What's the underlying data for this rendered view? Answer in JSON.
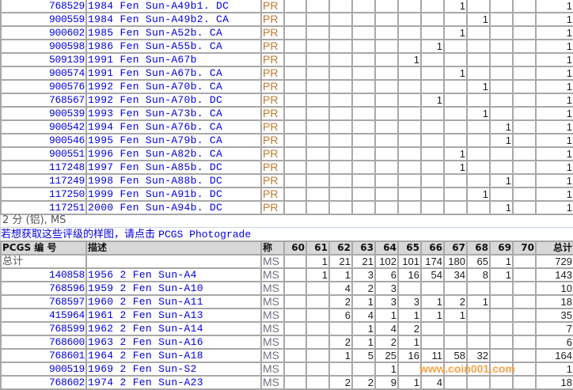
{
  "grade_columns": [
    "60",
    "61",
    "62",
    "63",
    "64",
    "65",
    "66",
    "67",
    "68",
    "69",
    "70"
  ],
  "pr_section": {
    "rows": [
      {
        "id": "768529",
        "desc": "1984 Fen Sun-A49b1. DC",
        "g": "PR",
        "counts": {
          "67": "1"
        },
        "total": "1"
      },
      {
        "id": "900559",
        "desc": "1984 Fen Sun-A49b2. CA",
        "g": "PR",
        "counts": {
          "68": "1"
        },
        "total": "1"
      },
      {
        "id": "900602",
        "desc": "1985 Fen Sun-A52b. CA",
        "g": "PR",
        "counts": {
          "67": "1"
        },
        "total": "1"
      },
      {
        "id": "900598",
        "desc": "1986 Fen Sun-A55b. CA",
        "g": "PR",
        "counts": {
          "66": "1"
        },
        "total": "1"
      },
      {
        "id": "509139",
        "desc": "1991 Fen Sun-A67b",
        "g": "PR",
        "counts": {
          "65": "1"
        },
        "total": "1"
      },
      {
        "id": "900574",
        "desc": "1991 Fen Sun-A67b. CA",
        "g": "PR",
        "counts": {
          "67": "1"
        },
        "total": "1"
      },
      {
        "id": "900576",
        "desc": "1992 Fen Sun-A70b. CA",
        "g": "PR",
        "counts": {
          "68": "1"
        },
        "total": "1"
      },
      {
        "id": "768567",
        "desc": "1992 Fen Sun-A70b. DC",
        "g": "PR",
        "counts": {
          "66": "1"
        },
        "total": "1"
      },
      {
        "id": "900539",
        "desc": "1993 Fen Sun-A73b. CA",
        "g": "PR",
        "counts": {
          "68": "1"
        },
        "total": "1"
      },
      {
        "id": "900542",
        "desc": "1994 Fen Sun-A76b. CA",
        "g": "PR",
        "counts": {
          "69": "1"
        },
        "total": "1"
      },
      {
        "id": "900546",
        "desc": "1995 Fen Sun-A79b. CA",
        "g": "PR",
        "counts": {
          "69": "1"
        },
        "total": "1"
      },
      {
        "id": "900551",
        "desc": "1996 Fen Sun-A82b. CA",
        "g": "PR",
        "counts": {
          "67": "1"
        },
        "total": "1"
      },
      {
        "id": "117248",
        "desc": "1997 Fen Sun-A85b. DC",
        "g": "PR",
        "counts": {
          "67": "1"
        },
        "total": "1"
      },
      {
        "id": "117249",
        "desc": "1998 Fen Sun-A88b. DC",
        "g": "PR",
        "counts": {
          "69": "1"
        },
        "total": "1"
      },
      {
        "id": "117250",
        "desc": "1999 Fen Sun-A91b. DC",
        "g": "PR",
        "counts": {
          "68": "1"
        },
        "total": "1"
      },
      {
        "id": "117251",
        "desc": "2000 Fen Sun-A94b. DC",
        "g": "PR",
        "counts": {
          "69": "1"
        },
        "total": "1"
      }
    ]
  },
  "ms_section": {
    "title": "2 分 (铝), MS",
    "photograde_prefix": "若想获取这些评级的样图，请点击 ",
    "photograde_link": "PCGS Photograde",
    "headers": {
      "id": "PCGS 编 号",
      "desc": "描述",
      "grade": "称",
      "total": "总计"
    },
    "summary": {
      "label": "总计",
      "g": "MS",
      "counts": {
        "61": "1",
        "62": "21",
        "63": "21",
        "64": "102",
        "65": "101",
        "66": "174",
        "67": "180",
        "68": "65",
        "69": "1"
      },
      "total": "729"
    },
    "rows": [
      {
        "id": "140858",
        "desc": "1956 2 Fen Sun-A4",
        "g": "MS",
        "counts": {
          "61": "1",
          "62": "1",
          "63": "3",
          "64": "6",
          "65": "16",
          "66": "54",
          "67": "34",
          "68": "8",
          "69": "1"
        },
        "total": "143"
      },
      {
        "id": "768596",
        "desc": "1959 2 Fen Sun-A10",
        "g": "MS",
        "counts": {
          "62": "4",
          "63": "2",
          "64": "3"
        },
        "total": "10"
      },
      {
        "id": "768597",
        "desc": "1960 2 Fen Sun-A11",
        "g": "MS",
        "counts": {
          "62": "2",
          "63": "1",
          "64": "3",
          "65": "3",
          "66": "1",
          "67": "2",
          "68": "1"
        },
        "total": "18"
      },
      {
        "id": "415964",
        "desc": "1961 2 Fen Sun-A13",
        "g": "MS",
        "counts": {
          "62": "6",
          "63": "4",
          "64": "1",
          "65": "1",
          "66": "1",
          "67": "1"
        },
        "total": "35"
      },
      {
        "id": "768599",
        "desc": "1962 2 Fen Sun-A14",
        "g": "MS",
        "counts": {
          "63": "1",
          "64": "4",
          "65": "2"
        },
        "total": "7"
      },
      {
        "id": "768600",
        "desc": "1963 2 Fen Sun-A16",
        "g": "MS",
        "counts": {
          "62": "2",
          "63": "1",
          "64": "2",
          "65": "1"
        },
        "total": "6"
      },
      {
        "id": "768601",
        "desc": "1964 2 Fen Sun-A18",
        "g": "MS",
        "counts": {
          "62": "1",
          "63": "5",
          "64": "25",
          "65": "16",
          "66": "11",
          "67": "58",
          "68": "32"
        },
        "total": "164"
      },
      {
        "id": "900519",
        "desc": "1969 2 Fen Sun-S2",
        "g": "MS",
        "counts": {
          "64": "1"
        },
        "total": "1"
      },
      {
        "id": "768602",
        "desc": "1974 2 Fen Sun-A23",
        "g": "MS",
        "counts": {
          "62": "2",
          "63": "2",
          "64": "9",
          "65": "1",
          "66": "4"
        },
        "total": "18"
      }
    ]
  },
  "watermark": "www.coin001.com"
}
